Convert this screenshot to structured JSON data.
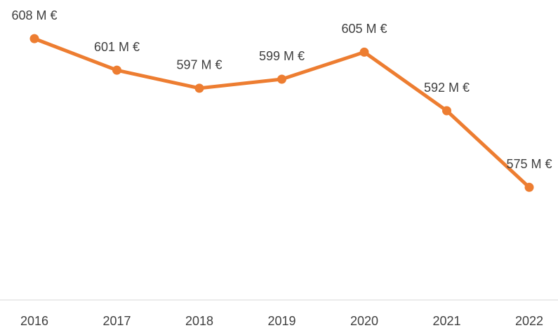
{
  "chart_data": {
    "type": "line",
    "categories": [
      "2016",
      "2017",
      "2018",
      "2019",
      "2020",
      "2021",
      "2022"
    ],
    "series": [
      {
        "color": "#ed7d31",
        "values": [
          608,
          601,
          597,
          599,
          605,
          592,
          575
        ],
        "value_labels": [
          "608 M €",
          "601 M €",
          "597 M €",
          "599 M €",
          "605 M €",
          "592 M €",
          "575 M €"
        ]
      }
    ],
    "ylim": [
      550,
      620
    ],
    "grid": false
  }
}
